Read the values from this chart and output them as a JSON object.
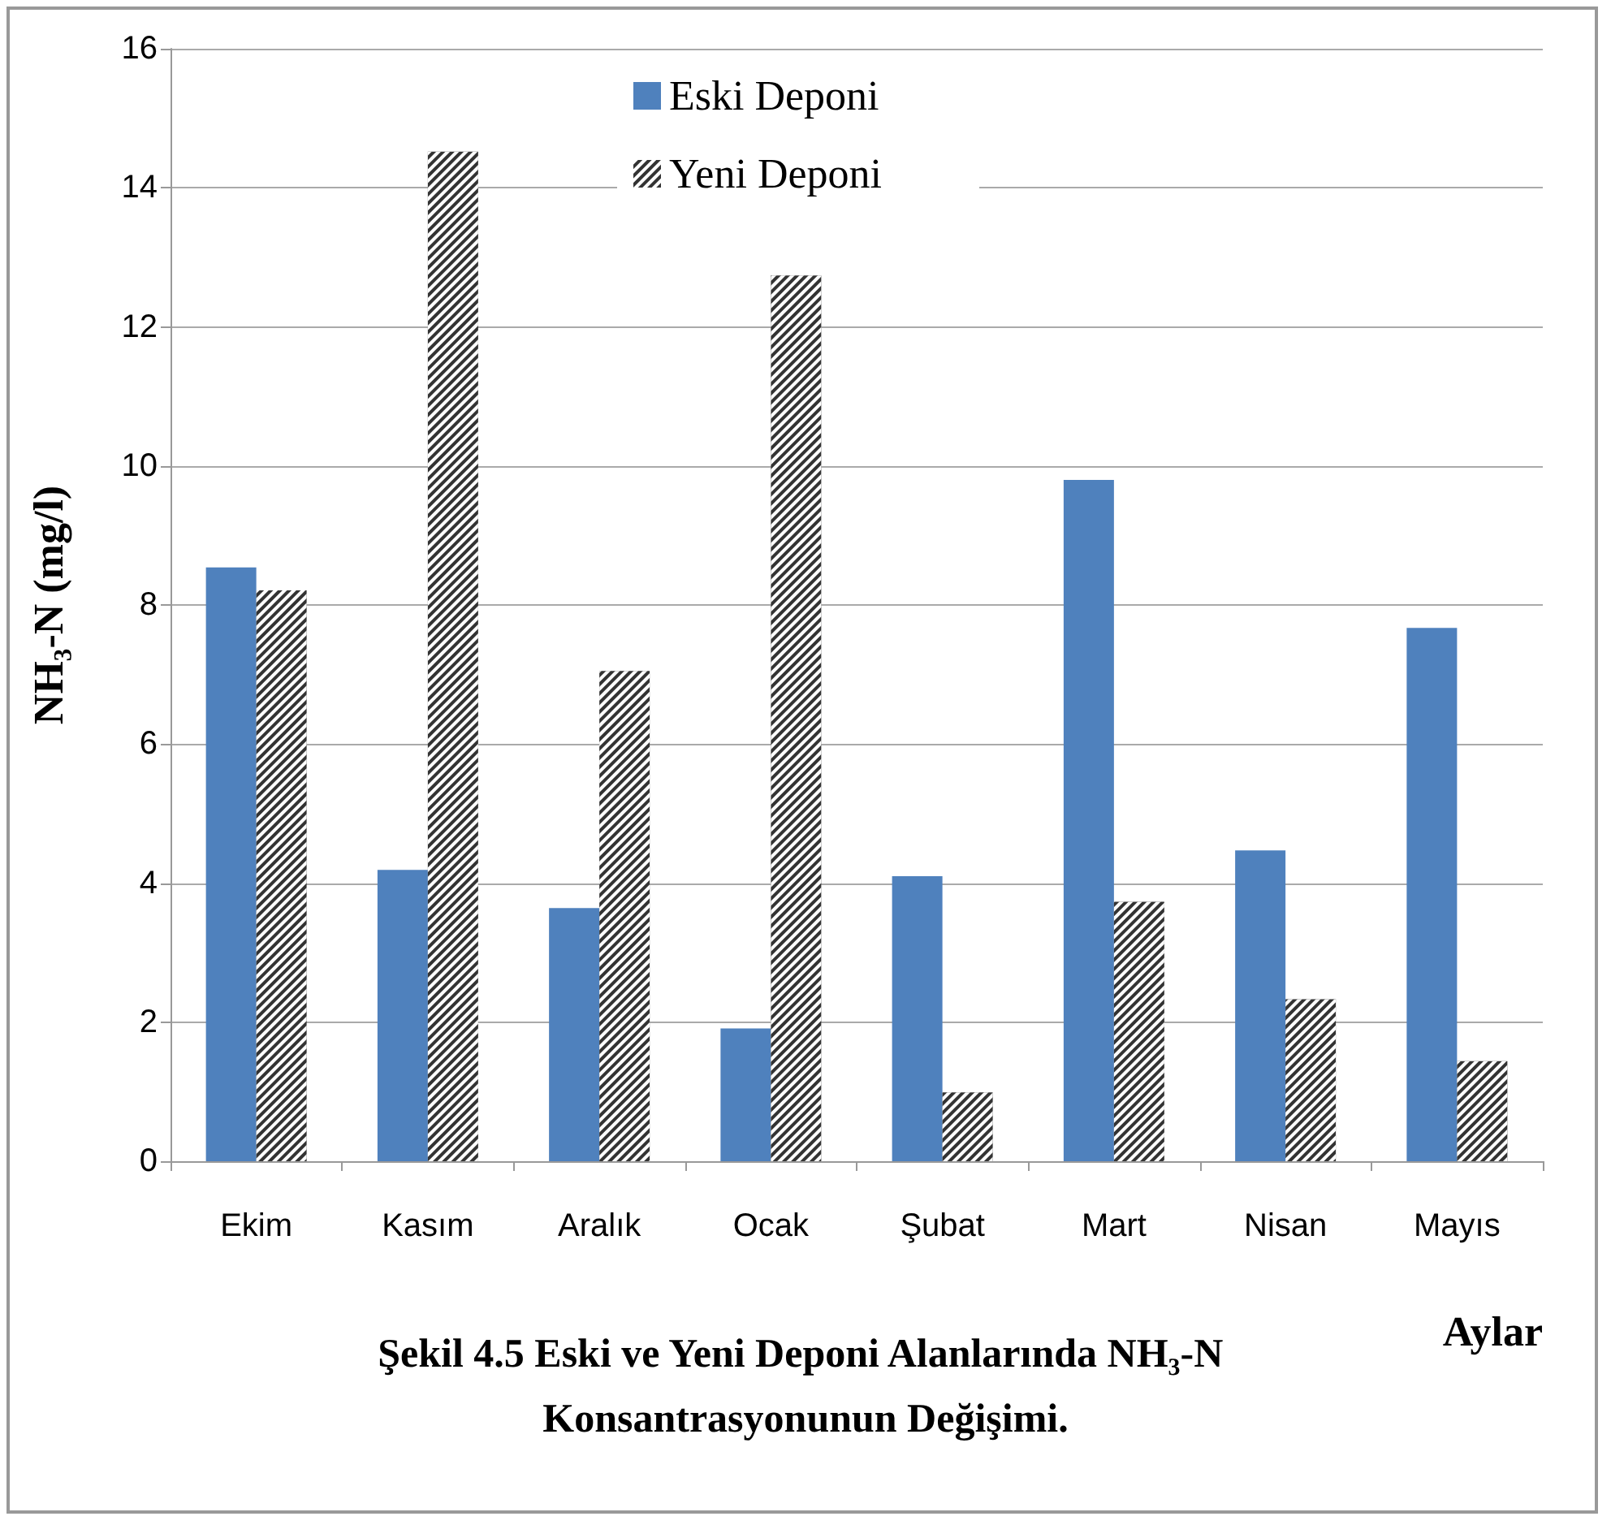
{
  "chart_data": {
    "type": "bar",
    "title": "Şekil 4.5 Eski ve Yeni Deponi Alanlarında NH₃-N Konsantrasyonunun Değişimi.",
    "xlabel": "Aylar",
    "ylabel": "NH₃-N (mg/l)",
    "categories": [
      "Ekim",
      "Kasım",
      "Aralık",
      "Ocak",
      "Şubat",
      "Mart",
      "Nisan",
      "Mayıs"
    ],
    "series": [
      {
        "name": "Eski Deponi",
        "color": "#4f81bd",
        "values": [
          8.54,
          4.19,
          3.64,
          1.91,
          4.1,
          9.8,
          4.47,
          7.67
        ]
      },
      {
        "name": "Yeni Deponi",
        "color": "#333333",
        "values": [
          8.21,
          14.52,
          7.05,
          12.74,
          0.99,
          3.73,
          2.33,
          1.44
        ]
      }
    ],
    "ylim": [
      0,
      16
    ],
    "yticks": [
      0,
      2,
      4,
      6,
      8,
      10,
      12,
      14,
      16
    ],
    "grid": "y",
    "legend": "top"
  }
}
